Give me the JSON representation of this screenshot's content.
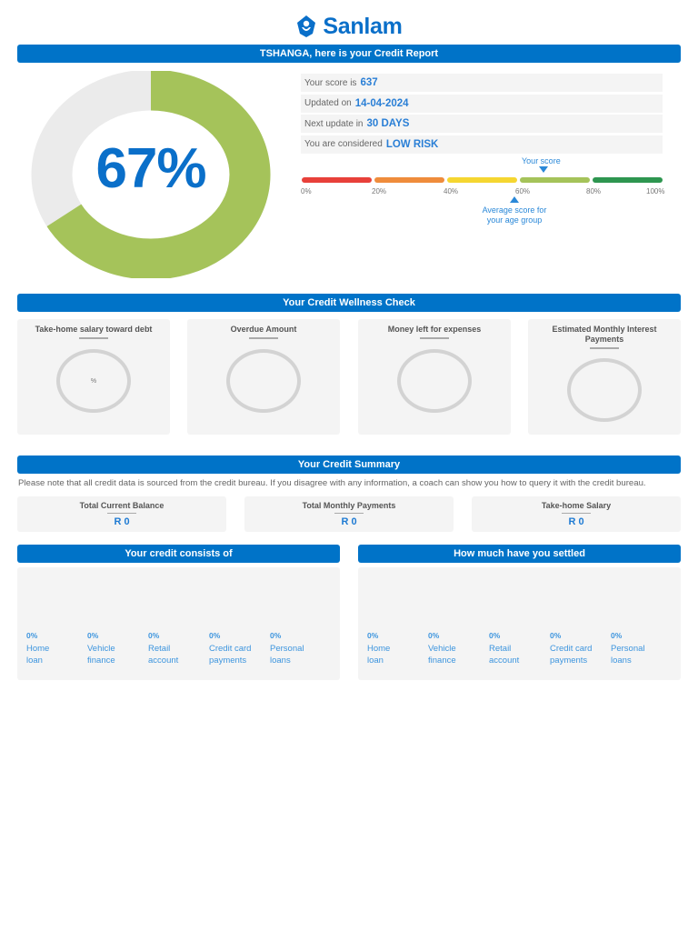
{
  "brand": {
    "name": "Sanlam",
    "logo_icon": "sanlam-shield-icon",
    "color": "#0a6fc9"
  },
  "header_banner": "TSHANGA, here is your Credit Report",
  "score_donut": {
    "percent": 67,
    "label": "67%",
    "fill_color": "#a5c35a",
    "track_color": "#ebebeb"
  },
  "info": {
    "score_label": "Your score is",
    "score_value": "637",
    "updated_label": "Updated on",
    "updated_value": "14-04-2024",
    "next_label": "Next update in",
    "next_value": "30 DAYS",
    "risk_label": "You are considered",
    "risk_value": "LOW RISK"
  },
  "scale": {
    "your_score_label": "Your score",
    "your_score_position_pct": 67,
    "average_label_line1": "Average score for",
    "average_label_line2": "your age group",
    "average_position_pct": 59,
    "ticks": [
      "0%",
      "20%",
      "40%",
      "60%",
      "80%",
      "100%"
    ],
    "segments": [
      {
        "color": "#e8403a"
      },
      {
        "color": "#ef8c3c"
      },
      {
        "color": "#f5d631"
      },
      {
        "color": "#a5c35a"
      },
      {
        "color": "#2e9650"
      }
    ]
  },
  "wellness": {
    "title": "Your Credit Wellness Check",
    "cards": [
      {
        "title": "Take-home salary toward debt",
        "value": "%"
      },
      {
        "title": "Overdue Amount",
        "value": ""
      },
      {
        "title": "Money left for expenses",
        "value": ""
      },
      {
        "title": "Estimated Monthly Interest Payments",
        "value": ""
      }
    ]
  },
  "summary": {
    "title": "Your Credit Summary",
    "note": "Please note that all credit data is sourced from the credit bureau. If you disagree with any information, a coach can show you how to query it with the credit bureau.",
    "cards": [
      {
        "title": "Total Current Balance",
        "value": "R 0"
      },
      {
        "title": "Total Monthly Payments",
        "value": "R 0"
      },
      {
        "title": "Take-home Salary",
        "value": "R 0"
      }
    ]
  },
  "consists": {
    "title": "Your credit consists of",
    "items": [
      {
        "pct": "0%",
        "line1": "Home",
        "line2": "loan"
      },
      {
        "pct": "0%",
        "line1": "Vehicle",
        "line2": "finance"
      },
      {
        "pct": "0%",
        "line1": "Retail",
        "line2": "account"
      },
      {
        "pct": "0%",
        "line1": "Credit card",
        "line2": "payments"
      },
      {
        "pct": "0%",
        "line1": "Personal",
        "line2": "loans"
      }
    ]
  },
  "settled": {
    "title": "How much have you settled",
    "items": [
      {
        "pct": "0%",
        "line1": "Home",
        "line2": "loan"
      },
      {
        "pct": "0%",
        "line1": "Vehicle",
        "line2": "finance"
      },
      {
        "pct": "0%",
        "line1": "Retail",
        "line2": "account"
      },
      {
        "pct": "0%",
        "line1": "Credit card",
        "line2": "payments"
      },
      {
        "pct": "0%",
        "line1": "Personal",
        "line2": "loans"
      }
    ]
  }
}
